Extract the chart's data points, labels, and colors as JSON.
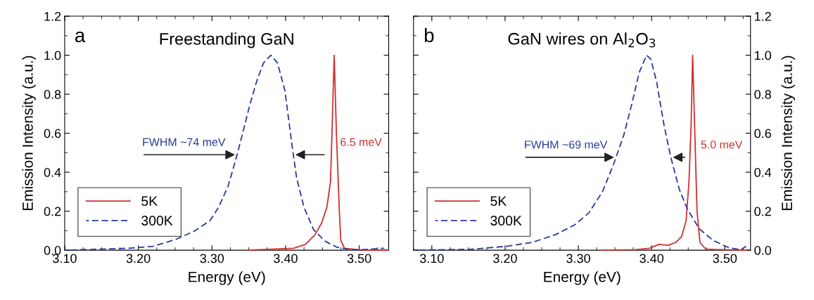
{
  "chart_data": [
    {
      "type": "line",
      "title": "Freestanding GaN",
      "xlabel": "Energy (eV)",
      "ylabel": "Emission Intensity (a.u.)",
      "annotations": [
        "a",
        "FWHM ~74 meV",
        "6.5 meV"
      ],
      "series": [
        {
          "name": "5K",
          "color": "#d03030",
          "line_style": "solid",
          "x": [
            3.347,
            3.411,
            3.427,
            3.44,
            3.449,
            3.456,
            3.461,
            3.463,
            3.466,
            3.469,
            3.473,
            3.475,
            3.48,
            3.507,
            3.539
          ],
          "values": [
            0.0,
            0.01,
            0.03,
            0.08,
            0.14,
            0.22,
            0.35,
            0.6,
            1.0,
            0.6,
            0.2,
            0.05,
            0.01,
            0.0,
            0.0
          ]
        },
        {
          "name": "300K",
          "color": "#2a3a9a",
          "line_style": "dashed",
          "x": [
            3.1,
            3.1875,
            3.22,
            3.252,
            3.277,
            3.297,
            3.309,
            3.322,
            3.332,
            3.341,
            3.351,
            3.361,
            3.37,
            3.38,
            3.389,
            3.399,
            3.409,
            3.415,
            3.425,
            3.438,
            3.454,
            3.47,
            3.492,
            3.534
          ],
          "values": [
            0.0,
            0.01,
            0.02,
            0.057,
            0.1,
            0.15,
            0.22,
            0.33,
            0.46,
            0.59,
            0.74,
            0.87,
            0.96,
            1.0,
            0.96,
            0.82,
            0.53,
            0.37,
            0.22,
            0.105,
            0.045,
            0.015,
            0.0,
            0.01
          ]
        }
      ],
      "xlim": [
        3.1,
        3.54
      ],
      "xticks": [
        {
          "value": 3.1,
          "label": "3.10"
        },
        {
          "value": 3.2,
          "label": "3.20"
        },
        {
          "value": 3.3,
          "label": "3.30"
        },
        {
          "value": 3.4,
          "label": "3.40"
        },
        {
          "value": 3.5,
          "label": "3.50"
        }
      ],
      "ylim": [
        0,
        1.2
      ],
      "yticks": [
        {
          "value": 0,
          "label": "0.0"
        },
        {
          "value": 0.2,
          "label": "0.2"
        },
        {
          "value": 0.4,
          "label": "0.4"
        },
        {
          "value": 0.6,
          "label": "0.6"
        },
        {
          "value": 0.8,
          "label": "0.8"
        },
        {
          "value": 1.0,
          "label": "1.0"
        },
        {
          "value": 1.2,
          "label": "1.2"
        }
      ],
      "legend": "bottom left",
      "grid": false
    },
    {
      "type": "line",
      "title": "GaN wires on Al$_{2}$O$_{3}$",
      "xlabel": "Energy (eV)",
      "y2label": "Emission Intensity (a.u.)",
      "annotations": [
        "b",
        "FWHM ~69 meV",
        "5.0 meV"
      ],
      "series": [
        {
          "name": "5K",
          "color": "#d03030",
          "line_style": "solid",
          "axis": "y2",
          "x": [
            3.333,
            3.378,
            3.397,
            3.41,
            3.423,
            3.433,
            3.441,
            3.447,
            3.451,
            3.454,
            3.456,
            3.459,
            3.462,
            3.466,
            3.474,
            3.529
          ],
          "values": [
            0.0,
            0.003,
            0.01,
            0.03,
            0.025,
            0.04,
            0.07,
            0.15,
            0.35,
            0.65,
            1.0,
            0.6,
            0.2,
            0.04,
            0.005,
            0.0
          ]
        },
        {
          "name": "300K",
          "color": "#2a3a9a",
          "line_style": "dashed",
          "axis": "y2",
          "x": [
            3.075,
            3.154,
            3.202,
            3.237,
            3.269,
            3.295,
            3.314,
            3.333,
            3.349,
            3.362,
            3.373,
            3.383,
            3.393,
            3.399,
            3.407,
            3.417,
            3.426,
            3.438,
            3.449,
            3.465,
            3.484,
            3.506,
            3.522,
            3.529
          ],
          "values": [
            0.0,
            0.005,
            0.02,
            0.04,
            0.08,
            0.13,
            0.19,
            0.3,
            0.45,
            0.59,
            0.75,
            0.91,
            1.0,
            0.98,
            0.86,
            0.64,
            0.48,
            0.31,
            0.21,
            0.11,
            0.05,
            0.012,
            0.002,
            0.02
          ]
        }
      ],
      "xlim": [
        3.075,
        3.535
      ],
      "xticks": [
        {
          "value": 3.1,
          "label": "3.10"
        },
        {
          "value": 3.2,
          "label": "3.20"
        },
        {
          "value": 3.3,
          "label": "3.30"
        },
        {
          "value": 3.4,
          "label": "3.40"
        },
        {
          "value": 3.5,
          "label": "3.50"
        }
      ],
      "y2lim": [
        0,
        1.2
      ],
      "y2ticks": [
        {
          "value": 0,
          "label": "0.0"
        },
        {
          "value": 0.2,
          "label": "0.2"
        },
        {
          "value": 0.4,
          "label": "0.4"
        },
        {
          "value": 0.6,
          "label": "0.6"
        },
        {
          "value": 0.8,
          "label": "0.8"
        },
        {
          "value": 1.0,
          "label": "1.0"
        },
        {
          "value": 1.2,
          "label": "1.2"
        }
      ],
      "legend": "bottom left",
      "grid": false
    }
  ]
}
